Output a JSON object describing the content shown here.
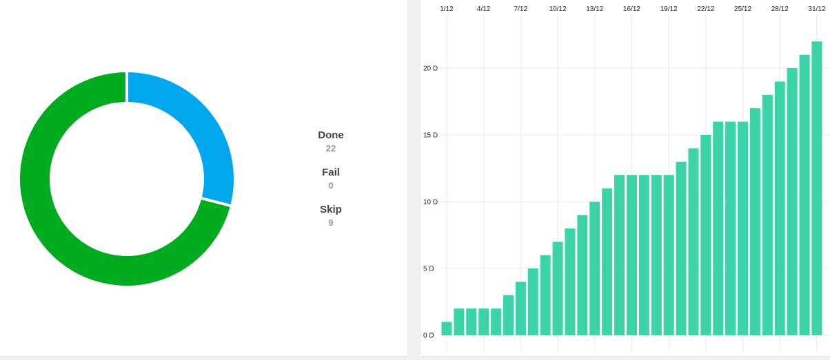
{
  "colors": {
    "done": "#00ab20",
    "skip": "#00a7ee",
    "fail": "#e53935",
    "bar": "#3cd3a8",
    "grid": "#e8e8e8"
  },
  "chart_data": [
    {
      "type": "pie",
      "style": "donut",
      "legend_position": "right",
      "slices": [
        {
          "label": "Done",
          "value": 22
        },
        {
          "label": "Fail",
          "value": 0
        },
        {
          "label": "Skip",
          "value": 9
        }
      ]
    },
    {
      "type": "bar",
      "x_tick_position": "top",
      "x_ticks": [
        "1/12",
        "4/12",
        "7/12",
        "10/12",
        "13/12",
        "16/12",
        "19/12",
        "22/12",
        "25/12",
        "28/12",
        "31/12"
      ],
      "y_ticks": [
        "0 D",
        "5 D",
        "10 D",
        "15 D",
        "20 D"
      ],
      "ylim": [
        0,
        22
      ],
      "grid": true,
      "categories": [
        "1/12",
        "2/12",
        "3/12",
        "4/12",
        "5/12",
        "6/12",
        "7/12",
        "8/12",
        "9/12",
        "10/12",
        "11/12",
        "12/12",
        "13/12",
        "14/12",
        "15/12",
        "16/12",
        "17/12",
        "18/12",
        "19/12",
        "20/12",
        "21/12",
        "22/12",
        "23/12",
        "24/12",
        "25/12",
        "26/12",
        "27/12",
        "28/12",
        "29/12",
        "30/12",
        "31/12"
      ],
      "values": [
        1,
        2,
        2,
        2,
        2,
        3,
        4,
        5,
        6,
        7,
        8,
        9,
        10,
        11,
        12,
        12,
        12,
        12,
        12,
        13,
        14,
        15,
        16,
        16,
        16,
        17,
        18,
        19,
        20,
        21,
        22
      ]
    }
  ]
}
